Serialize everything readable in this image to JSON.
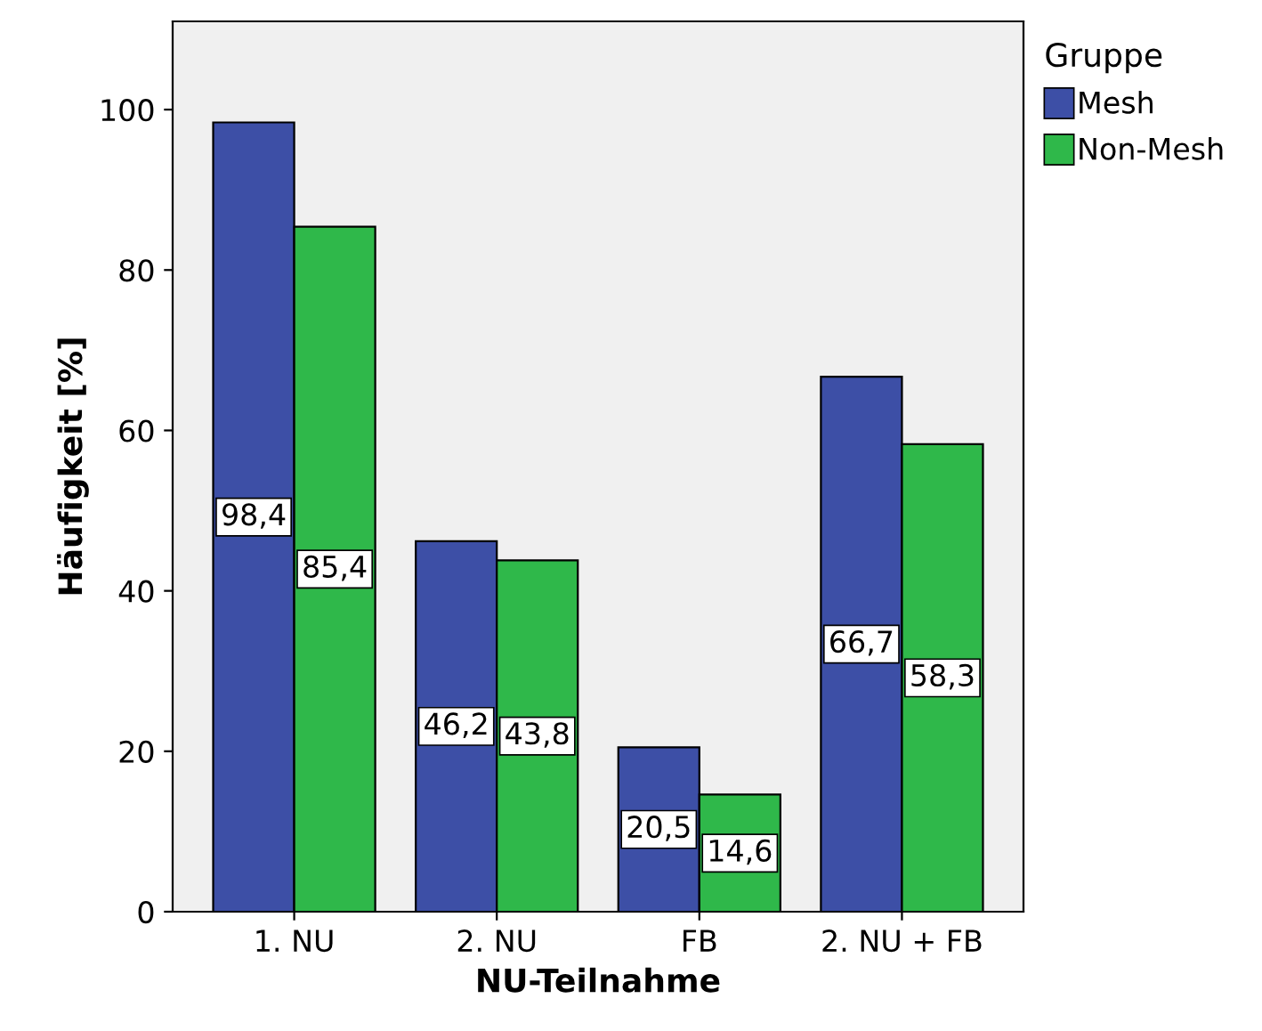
{
  "chart_data": {
    "type": "bar",
    "xlabel": "NU-Teilnahme",
    "ylabel": "Häufigkeit [%]",
    "legend_title": "Gruppe",
    "legend": "right",
    "categories": [
      "1. NU",
      "2. NU",
      "FB",
      "2. NU + FB"
    ],
    "series": [
      {
        "name": "Mesh",
        "color": "#3d4fa6",
        "values": [
          98.4,
          46.2,
          20.5,
          66.7
        ],
        "value_labels": [
          "98,4",
          "46,2",
          "20,5",
          "66,7"
        ]
      },
      {
        "name": "Non-Mesh",
        "color": "#2fb84a",
        "values": [
          85.4,
          43.8,
          14.6,
          58.3
        ],
        "value_labels": [
          "85,4",
          "43,8",
          "14,6",
          "58,3"
        ]
      }
    ],
    "ylim": [
      0,
      111
    ],
    "yticks": [
      0,
      20,
      40,
      60,
      80,
      100
    ],
    "grid": false
  }
}
